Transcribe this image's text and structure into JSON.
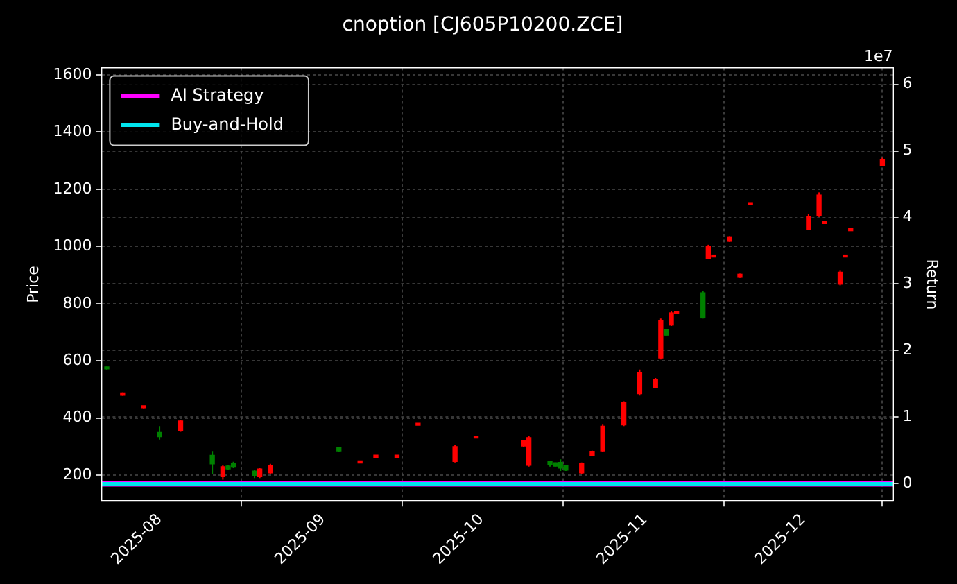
{
  "chart_data": {
    "type": "candlestick",
    "title": "cnoption [CJ605P10200.ZCE]",
    "ylabel": "Price",
    "y2label": "Return",
    "x": [
      "2025-07-22",
      "2025-07-25",
      "2025-07-29",
      "2025-08-01",
      "2025-08-05",
      "2025-08-11",
      "2025-08-13",
      "2025-08-14",
      "2025-08-15",
      "2025-08-19",
      "2025-08-20",
      "2025-08-22",
      "2025-09-04",
      "2025-09-08",
      "2025-09-11",
      "2025-09-15",
      "2025-09-19",
      "2025-09-26",
      "2025-09-30",
      "2025-10-09",
      "2025-10-10",
      "2025-10-14",
      "2025-10-15",
      "2025-10-16",
      "2025-10-17",
      "2025-10-20",
      "2025-10-22",
      "2025-10-24",
      "2025-10-28",
      "2025-10-31",
      "2025-11-03",
      "2025-11-04",
      "2025-11-05",
      "2025-11-06",
      "2025-11-07",
      "2025-11-12",
      "2025-11-13",
      "2025-11-14",
      "2025-11-17",
      "2025-11-19",
      "2025-11-21",
      "2025-12-02",
      "2025-12-04",
      "2025-12-05",
      "2025-12-08",
      "2025-12-09",
      "2025-12-10",
      "2025-12-16"
    ],
    "ohlc": [
      [
        578,
        580,
        570,
        572
      ],
      [
        480,
        490,
        478,
        488
      ],
      [
        436,
        442,
        434,
        440
      ],
      [
        350,
        372,
        325,
        335
      ],
      [
        355,
        393,
        352,
        390
      ],
      [
        270,
        285,
        205,
        240
      ],
      [
        195,
        235,
        185,
        230
      ],
      [
        232,
        235,
        220,
        222
      ],
      [
        242,
        247,
        225,
        228
      ],
      [
        215,
        220,
        190,
        200
      ],
      [
        195,
        225,
        190,
        222
      ],
      [
        208,
        240,
        205,
        235
      ],
      [
        298,
        300,
        282,
        285
      ],
      [
        243,
        247,
        243,
        247
      ],
      [
        263,
        265,
        263,
        265
      ],
      [
        263,
        266,
        263,
        266
      ],
      [
        375,
        377,
        375,
        377
      ],
      [
        248,
        306,
        245,
        300
      ],
      [
        330,
        334,
        330,
        334
      ],
      [
        302,
        322,
        300,
        320
      ],
      [
        235,
        337,
        230,
        332
      ],
      [
        248,
        250,
        230,
        238
      ],
      [
        244,
        245,
        230,
        232
      ],
      [
        245,
        256,
        215,
        225
      ],
      [
        234,
        235,
        215,
        218
      ],
      [
        208,
        245,
        205,
        240
      ],
      [
        268,
        286,
        266,
        284
      ],
      [
        285,
        377,
        281,
        372
      ],
      [
        376,
        459,
        372,
        455
      ],
      [
        485,
        570,
        479,
        560
      ],
      [
        505,
        540,
        504,
        535
      ],
      [
        610,
        748,
        605,
        740
      ],
      [
        710,
        712,
        687,
        690
      ],
      [
        725,
        773,
        722,
        768
      ],
      [
        766,
        768,
        766,
        768
      ],
      [
        838,
        844,
        748,
        750
      ],
      [
        958,
        1006,
        955,
        1000
      ],
      [
        963,
        965,
        963,
        965
      ],
      [
        1018,
        1036,
        1016,
        1034
      ],
      [
        892,
        905,
        890,
        903
      ],
      [
        1146,
        1148,
        1146,
        1148
      ],
      [
        1060,
        1113,
        1057,
        1105
      ],
      [
        1108,
        1189,
        1103,
        1180
      ],
      [
        1080,
        1082,
        1080,
        1082
      ],
      [
        868,
        915,
        864,
        910
      ],
      [
        963,
        965,
        963,
        965
      ],
      [
        1055,
        1057,
        1055,
        1057
      ],
      [
        1282,
        1310,
        1280,
        1305
      ]
    ],
    "colors": [
      "#008000",
      "#ff0000",
      "#ff0000",
      "#008000",
      "#ff0000",
      "#008000",
      "#ff0000",
      "#008000",
      "#008000",
      "#008000",
      "#ff0000",
      "#ff0000",
      "#008000",
      "#ff0000",
      "#ff0000",
      "#ff0000",
      "#ff0000",
      "#ff0000",
      "#ff0000",
      "#ff0000",
      "#ff0000",
      "#008000",
      "#008000",
      "#008000",
      "#008000",
      "#ff0000",
      "#ff0000",
      "#ff0000",
      "#ff0000",
      "#ff0000",
      "#ff0000",
      "#ff0000",
      "#008000",
      "#ff0000",
      "#ff0000",
      "#008000",
      "#ff0000",
      "#ff0000",
      "#ff0000",
      "#ff0000",
      "#ff0000",
      "#ff0000",
      "#ff0000",
      "#ff0000",
      "#ff0000",
      "#ff0000",
      "#ff0000",
      "#ff0000"
    ],
    "series": [
      {
        "name": "AI Strategy",
        "type": "line",
        "axis": "y2",
        "color": "#ff00ff",
        "x": [
          "2025-07-21",
          "2025-12-18"
        ],
        "values": [
          0,
          0
        ]
      },
      {
        "name": "Buy-and-Hold",
        "type": "line",
        "axis": "y2",
        "color": "#00e5ee",
        "x": [
          "2025-07-21",
          "2025-12-18"
        ],
        "values": [
          0,
          0
        ]
      }
    ],
    "xlim": [
      "2025-07-21",
      "2025-12-18"
    ],
    "xticks": [
      {
        "value": "2025-08-01",
        "label": "2025-08"
      },
      {
        "value": "2025-09-01",
        "label": "2025-09"
      },
      {
        "value": "2025-10-01",
        "label": "2025-10"
      },
      {
        "value": "2025-11-01",
        "label": "2025-11"
      },
      {
        "value": "2025-12-01",
        "label": "2025-12"
      }
    ],
    "ylim": [
      110,
      1625
    ],
    "yticks": [
      200,
      400,
      600,
      800,
      1000,
      1200,
      1400,
      1600
    ],
    "y2lim": [
      -0.26,
      6.25
    ],
    "y2ticks": [
      0,
      1,
      2,
      3,
      4,
      5,
      6
    ],
    "annotations": [
      "1e7"
    ],
    "grid": true,
    "legend": "top left",
    "marker": "none"
  }
}
